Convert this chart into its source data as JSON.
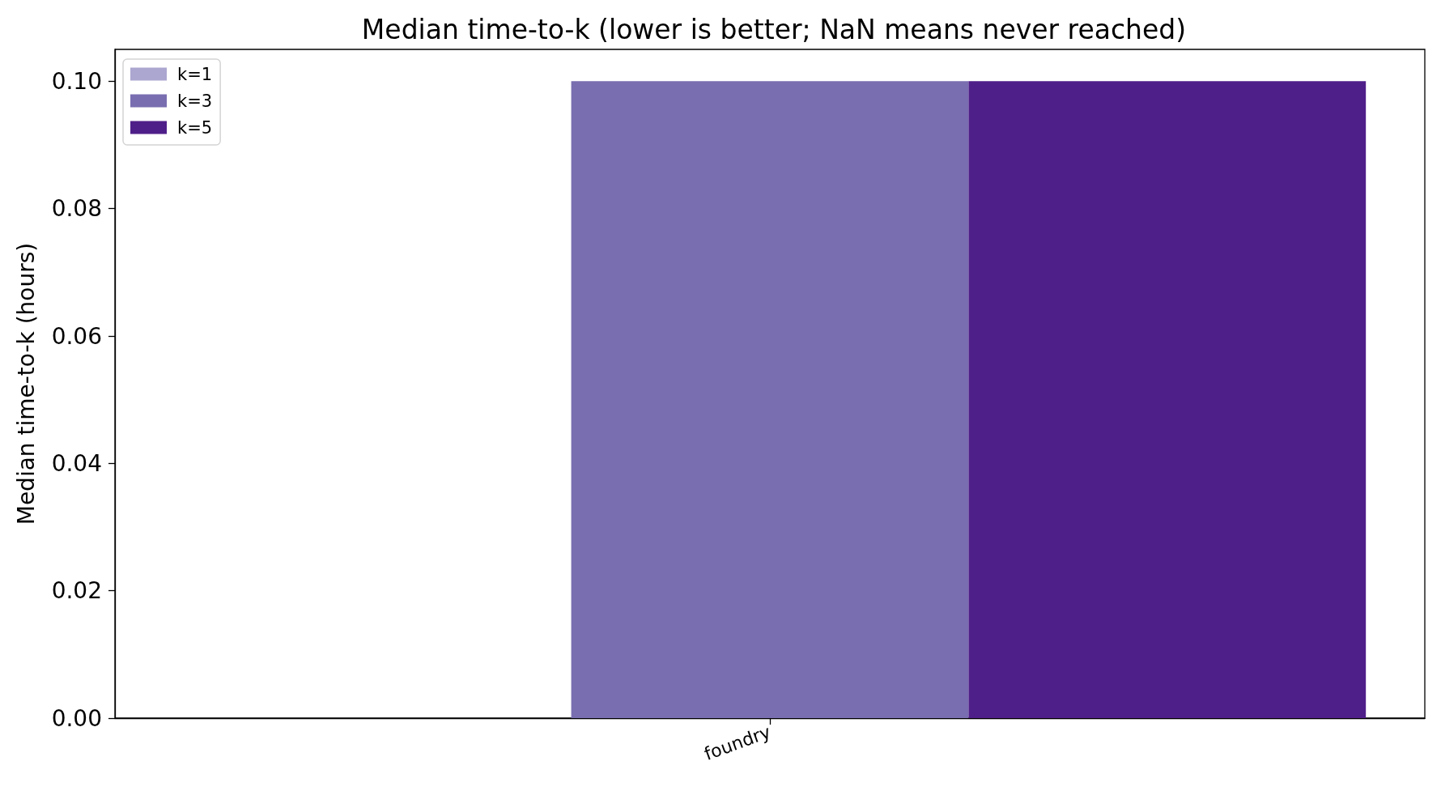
{
  "chart_data": {
    "type": "bar",
    "title": "Median time-to-k (lower is better; NaN means never reached)",
    "ylabel": "Median time-to-k (hours)",
    "categories": [
      "foundry"
    ],
    "series": [
      {
        "name": "k=1",
        "color": "#aba7d0",
        "values": [
          null
        ]
      },
      {
        "name": "k=3",
        "color": "#796eb0",
        "values": [
          0.1
        ]
      },
      {
        "name": "k=5",
        "color": "#4f1f89",
        "values": [
          0.1
        ]
      }
    ],
    "ylim": [
      0,
      0.105
    ],
    "yticks": [
      {
        "value": 0,
        "label": "0.00"
      },
      {
        "value": 0.02,
        "label": "0.02"
      },
      {
        "value": 0.04,
        "label": "0.04"
      },
      {
        "value": 0.06,
        "label": "0.06"
      },
      {
        "value": 0.08,
        "label": "0.08"
      },
      {
        "value": 0.1,
        "label": "0.10"
      }
    ],
    "grid": false,
    "legend": "top left"
  }
}
